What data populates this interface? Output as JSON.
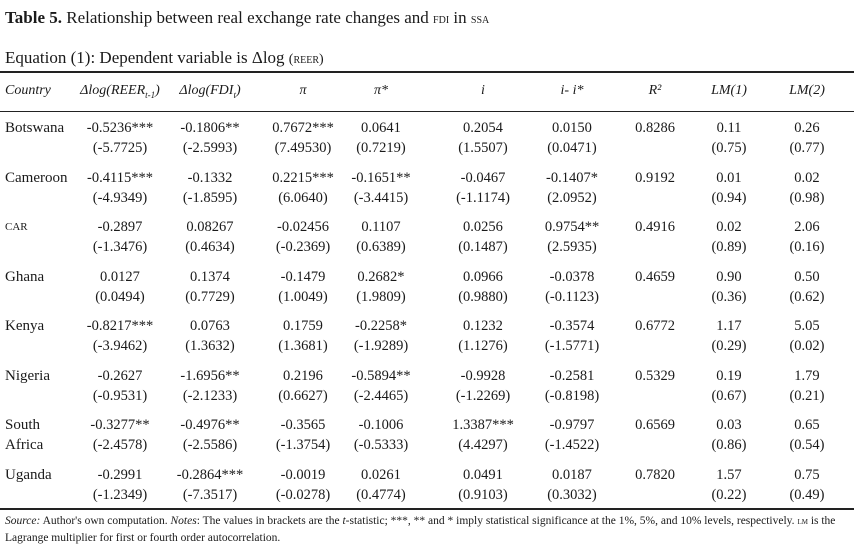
{
  "title": {
    "label": "Table 5.",
    "text_1": "Relationship between real exchange rate changes and ",
    "fdi": "FDI",
    "text_2": " in ",
    "ssa": "SSA"
  },
  "equation": {
    "text": "Equation (1): Dependent variable is Δlog ",
    "reer": "(REER)"
  },
  "headers": [
    {
      "main": "Country",
      "sub": "",
      "close": ""
    },
    {
      "main": "Δlog(REER",
      "sub": "t-1",
      "close": ")"
    },
    {
      "main": "Δlog(FDI",
      "sub": "t",
      "close": ")"
    },
    {
      "main": "π",
      "sub": "",
      "close": ""
    },
    {
      "main": "π*",
      "sub": "",
      "close": ""
    },
    {
      "main": "i",
      "sub": "",
      "close": ""
    },
    {
      "main": "i- i*",
      "sub": "",
      "close": ""
    },
    {
      "main": "R²",
      "sub": "",
      "close": ""
    },
    {
      "main": "LM(1)",
      "sub": "",
      "close": ""
    },
    {
      "main": "LM(2)",
      "sub": "",
      "close": ""
    }
  ],
  "rows": [
    {
      "country": "Botswana",
      "cells": [
        [
          "-0.5236***",
          "(-5.7725)"
        ],
        [
          "-0.1806**",
          "(-2.5993)"
        ],
        [
          "0.7672***",
          "(7.49530)"
        ],
        [
          "0.0641",
          "(0.7219)"
        ],
        [
          "0.2054",
          "(1.5507)"
        ],
        [
          "0.0150",
          "(0.0471)"
        ],
        [
          "0.8286",
          ""
        ],
        [
          "0.11",
          "(0.75)"
        ],
        [
          "0.26",
          "(0.77)"
        ]
      ]
    },
    {
      "country": "Cameroon",
      "cells": [
        [
          "-0.4115***",
          "(-4.9349)"
        ],
        [
          "-0.1332",
          "(-1.8595)"
        ],
        [
          "0.2215***",
          "(6.0640)"
        ],
        [
          "-0.1651**",
          "(-3.4415)"
        ],
        [
          "-0.0467",
          "(-1.1174)"
        ],
        [
          "-0.1407*",
          "(2.0952)"
        ],
        [
          "0.9192",
          ""
        ],
        [
          "0.01",
          "(0.94)"
        ],
        [
          "0.02",
          "(0.98)"
        ]
      ]
    },
    {
      "country": "CAR",
      "cells": [
        [
          "-0.2897",
          "(-1.3476)"
        ],
        [
          "0.08267",
          "(0.4634)"
        ],
        [
          "-0.02456",
          "(-0.2369)"
        ],
        [
          "0.1107",
          "(0.6389)"
        ],
        [
          "0.0256",
          "(0.1487)"
        ],
        [
          "0.9754**",
          "(2.5935)"
        ],
        [
          "0.4916",
          ""
        ],
        [
          "0.02",
          "(0.89)"
        ],
        [
          "2.06",
          "(0.16)"
        ]
      ]
    },
    {
      "country": "Ghana",
      "cells": [
        [
          "0.0127",
          "(0.0494)"
        ],
        [
          "0.1374",
          "(0.7729)"
        ],
        [
          "-0.1479",
          "(1.0049)"
        ],
        [
          "0.2682*",
          "(1.9809)"
        ],
        [
          "0.0966",
          "(0.9880)"
        ],
        [
          "-0.0378",
          "(-0.1123)"
        ],
        [
          "0.4659",
          ""
        ],
        [
          "0.90",
          "(0.36)"
        ],
        [
          "0.50",
          "(0.62)"
        ]
      ]
    },
    {
      "country": "Kenya",
      "cells": [
        [
          "-0.8217***",
          "(-3.9462)"
        ],
        [
          "0.0763",
          "(1.3632)"
        ],
        [
          "0.1759",
          "(1.3681)"
        ],
        [
          "-0.2258*",
          "(-1.9289)"
        ],
        [
          "0.1232",
          "(1.1276)"
        ],
        [
          "-0.3574",
          "(-1.5771)"
        ],
        [
          "0.6772",
          ""
        ],
        [
          "1.17",
          "(0.29)"
        ],
        [
          "5.05",
          "(0.02)"
        ]
      ]
    },
    {
      "country": "Nigeria",
      "cells": [
        [
          "-0.2627",
          "(-0.9531)"
        ],
        [
          "-1.6956**",
          "(-2.1233)"
        ],
        [
          "0.2196",
          "(0.6627)"
        ],
        [
          "-0.5894**",
          "(-2.4465)"
        ],
        [
          "-0.9928",
          "(-1.2269)"
        ],
        [
          "-0.2581",
          "(-0.8198)"
        ],
        [
          "0.5329",
          ""
        ],
        [
          "0.19",
          "(0.67)"
        ],
        [
          "1.79",
          "(0.21)"
        ]
      ]
    },
    {
      "country": "South Africa",
      "cells": [
        [
          "-0.3277**",
          "(-2.4578)"
        ],
        [
          "-0.4976**",
          "(-2.5586)"
        ],
        [
          "-0.3565",
          "(-1.3754)"
        ],
        [
          "-0.1006",
          "(-0.5333)"
        ],
        [
          "1.3387***",
          "(4.4297)"
        ],
        [
          "-0.9797",
          "(-1.4522)"
        ],
        [
          "0.6569",
          ""
        ],
        [
          "0.03",
          "(0.86)"
        ],
        [
          "0.65",
          "(0.54)"
        ]
      ]
    },
    {
      "country": "Uganda",
      "cells": [
        [
          "-0.2991",
          "(-1.2349)"
        ],
        [
          "-0.2864***",
          "(-7.3517)"
        ],
        [
          "-0.0019",
          "(-0.0278)"
        ],
        [
          "0.0261",
          "(0.4774)"
        ],
        [
          "0.0491",
          "(0.9103)"
        ],
        [
          "0.0187",
          "(0.3032)"
        ],
        [
          "0.7820",
          ""
        ],
        [
          "1.57",
          "(0.22)"
        ],
        [
          "0.75",
          "(0.49)"
        ]
      ]
    }
  ],
  "footnote": {
    "source_label": "Source:",
    "source_text": " Author's own computation. ",
    "notes_label": "Notes",
    "notes_text_1": ": The values in brackets are the ",
    "t": "t",
    "notes_text_2": "-statistic; ***, ** and * imply statistical significance at the 1%, 5%, and 10% levels, respectively. ",
    "lm": "LM",
    "notes_text_3": " is the Lagrange multiplier for first or fourth order autocorrelation."
  }
}
